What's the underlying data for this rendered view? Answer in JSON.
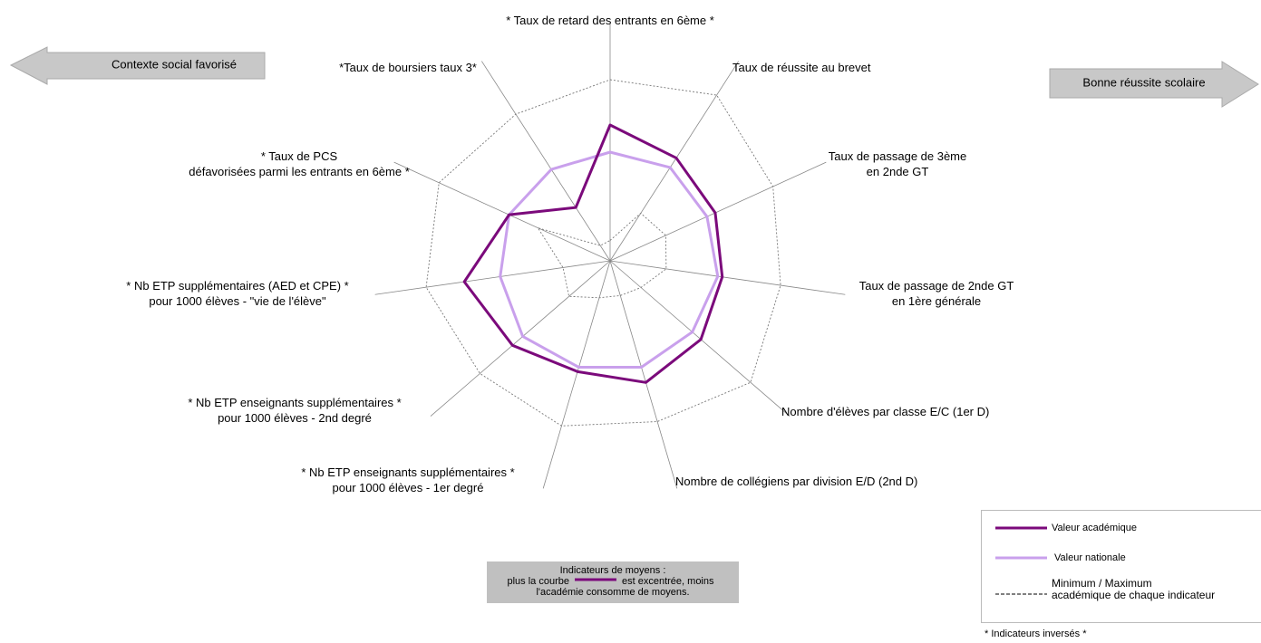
{
  "chart_data": {
    "type": "radar",
    "categories": [
      "* Taux de retard des entrants en 6ème *",
      "Taux de réussite au brevet",
      "Taux de passage de 3ème\nen 2nde GT",
      "Taux de passage de 2nde GT\nen 1ère générale",
      "Nombre d'élèves par classe E/C (1er D)",
      "Nombre de collégiens par division E/D (2nd D)",
      "* Nb ETP enseignants supplémentaires *\npour 1000 élèves - 1er degré",
      "* Nb ETP enseignants supplémentaires *\npour 1000 élèves - 2nd degré",
      "* Nb ETP supplémentaires (AED et CPE) *\npour 1000 élèves - \"vie de l'élève\"",
      "* Taux de PCS\ndéfavorisées parmi les entrants en 6ème *",
      "*Taux de boursiers taux 3*"
    ],
    "series": [
      {
        "name": "Valeur académique",
        "color": "#7b0a7b",
        "values": [
          60,
          54,
          51,
          50,
          53,
          56,
          51,
          57,
          65,
          49,
          28
        ]
      },
      {
        "name": "Valeur nationale",
        "color": "#c9a0ec",
        "values": [
          48,
          49,
          47,
          48,
          48,
          49,
          49,
          51,
          49,
          49,
          48
        ]
      }
    ],
    "bounds": {
      "name": "Minimum / Maximum\nacadémique  de chaque indicateur",
      "color": "#777777",
      "min": [
        9,
        25,
        27,
        25,
        18,
        16,
        17,
        24,
        21,
        35,
        8
      ],
      "max": [
        80,
        87,
        79,
        76,
        82,
        74,
        76,
        76,
        82,
        83,
        77
      ]
    },
    "ylim": [
      0,
      100
    ],
    "left_arrow": "Contexte social favorisé",
    "right_arrow": "Bonne réussite scolaire",
    "note": {
      "line1": "Indicateurs de moyens :",
      "line2a": "plus la courbe",
      "line2b": "est excentrée, moins",
      "line3": "l'académie consomme de moyens."
    },
    "footnote": "* Indicateurs inversés *"
  }
}
